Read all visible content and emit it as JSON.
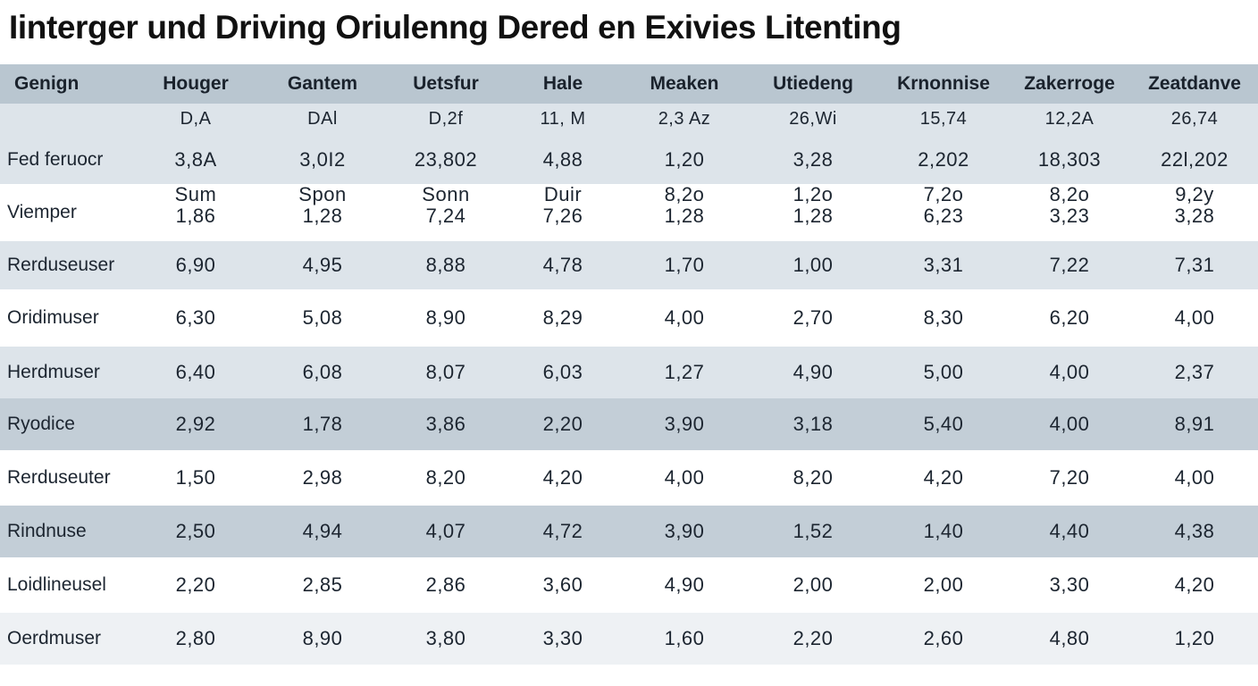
{
  "chart_data": {
    "type": "table",
    "title": "Iinterger und Driving Oriulenng Dered  en Exivies Litenting",
    "columns": [
      "Genign",
      "Houger",
      "Gantem",
      "Uetsfur",
      "Hale",
      "Meaken",
      "Utiedeng",
      "Krnonnise",
      "Zakerroge",
      "Zeatdanve"
    ],
    "unit_row": [
      "",
      "D,A",
      "DAl",
      "D,2f",
      "11, M",
      "2,3 Az",
      "26,Wi",
      "15,74",
      "12,2A",
      "26,74"
    ],
    "rows": [
      {
        "label": "Fed feruocr",
        "values": [
          "3,8A",
          "3,0I2",
          "23,802",
          "4,88",
          "1,20",
          "3,28",
          "2,202",
          "18,303",
          "22l,202"
        ]
      },
      {
        "label": "Viemper",
        "sublabels": [
          "Sum",
          "Spon",
          "Sonn",
          "Duir",
          "8,2o",
          "1,2o",
          "7,2o",
          "8,2o",
          "9,2y"
        ],
        "values": [
          "1,86",
          "1,28",
          "7,24",
          "7,26",
          "1,28",
          "1,28",
          "6,23",
          "3,23",
          "3,28"
        ]
      },
      {
        "label": "Rerduseuser",
        "values": [
          "6,90",
          "4,95",
          "8,88",
          "4,78",
          "1,70",
          "1,00",
          "3,31",
          "7,22",
          "7,31"
        ]
      },
      {
        "label": "Oridimuser",
        "values": [
          "6,30",
          "5,08",
          "8,90",
          "8,29",
          "4,00",
          "2,70",
          "8,30",
          "6,20",
          "4,00"
        ]
      },
      {
        "label": "Herdmuser",
        "values": [
          "6,40",
          "6,08",
          "8,07",
          "6,03",
          "1,27",
          "4,90",
          "5,00",
          "4,00",
          "2,37"
        ]
      },
      {
        "label": "Ryodice",
        "values": [
          "2,92",
          "1,78",
          "3,86",
          "2,20",
          "3,90",
          "3,18",
          "5,40",
          "4,00",
          "8,91"
        ]
      },
      {
        "label": "Rerduseuter",
        "values": [
          "1,50",
          "2,98",
          "8,20",
          "4,20",
          "4,00",
          "8,20",
          "4,20",
          "7,20",
          "4,00"
        ]
      },
      {
        "label": "Rindnuse",
        "values": [
          "2,50",
          "4,94",
          "4,07",
          "4,72",
          "3,90",
          "1,52",
          "1,40",
          "4,40",
          "4,38"
        ]
      },
      {
        "label": "Loidlineusel",
        "values": [
          "2,20",
          "2,85",
          "2,86",
          "3,60",
          "4,90",
          "2,00",
          "2,00",
          "3,30",
          "4,20"
        ]
      },
      {
        "label": "Oerdmuser",
        "values": [
          "2,80",
          "8,90",
          "3,80",
          "3,30",
          "1,60",
          "2,20",
          "2,60",
          "4,80",
          "1,20"
        ]
      }
    ]
  }
}
